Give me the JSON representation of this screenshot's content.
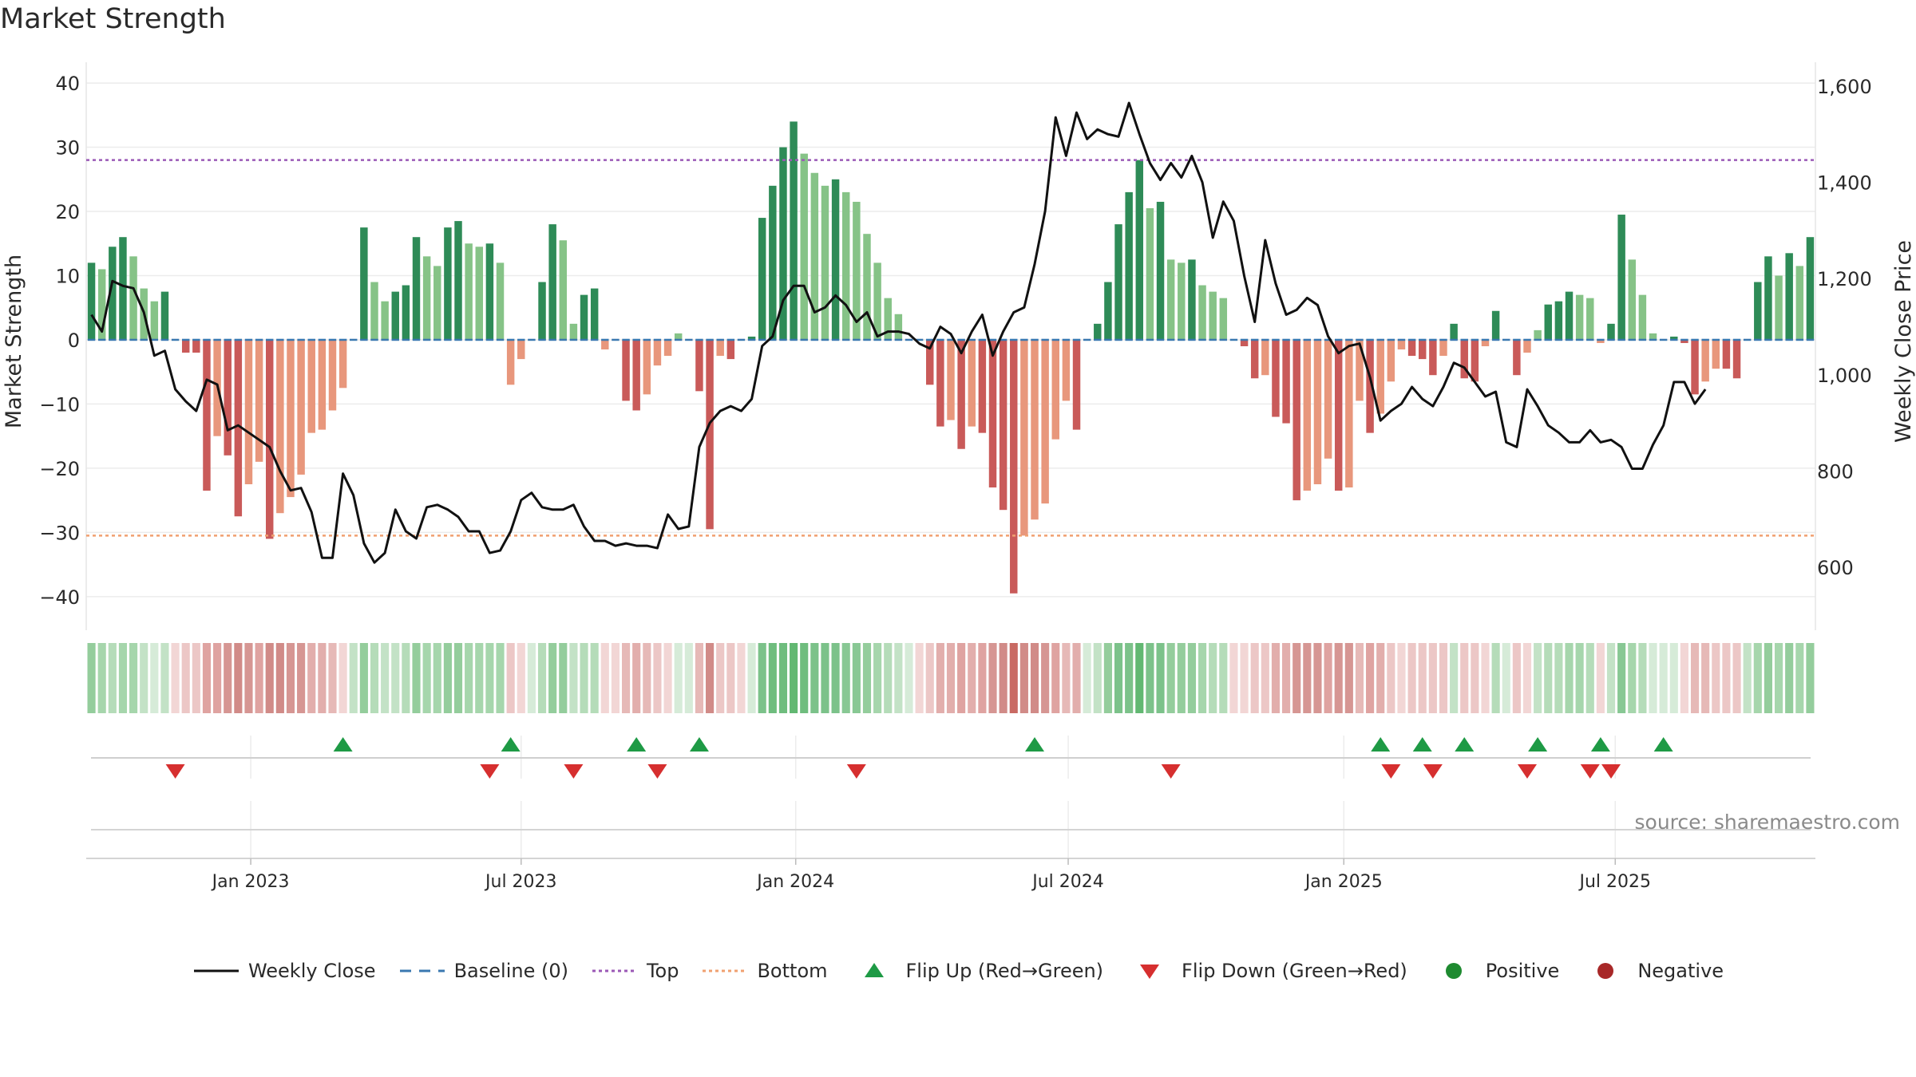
{
  "page": {
    "title": "Market Strength"
  },
  "chart_data": {
    "type": "bar",
    "title": "Market Strength",
    "ylabel": "Market Strength",
    "y2label": "Weekly Close Price",
    "ylim": [
      -44,
      42
    ],
    "y2lim": [
      486,
      1633
    ],
    "yticks": [
      -40,
      -30,
      -20,
      -10,
      0,
      10,
      20,
      30,
      40
    ],
    "y2ticks": [
      600,
      800,
      1000,
      1200,
      1400,
      1600
    ],
    "ytick_labels": [
      "−40",
      "−30",
      "−20",
      "−10",
      "0",
      "10",
      "20",
      "30",
      "40"
    ],
    "y2tick_labels": [
      "600",
      "800",
      "1,000",
      "1,200",
      "1,400",
      "1,600"
    ],
    "xticks": [
      {
        "label": "Jan 2023",
        "week": 15.2
      },
      {
        "label": "Jul 2023",
        "week": 41.0
      },
      {
        "label": "Jan 2024",
        "week": 67.2
      },
      {
        "label": "Jul 2024",
        "week": 93.2
      },
      {
        "label": "Jan 2025",
        "week": 119.5
      },
      {
        "label": "Jul 2025",
        "week": 145.4
      }
    ],
    "top_level": 28,
    "bottom_level": -30.5,
    "source": "source: sharemaestro.com",
    "strength": [
      12,
      11,
      14.5,
      16,
      13,
      8,
      6,
      7.5,
      0,
      -2,
      -2,
      -23.5,
      -15,
      -18,
      -27.5,
      -22.5,
      -19,
      -31,
      -27,
      -24.5,
      -21,
      -14.5,
      -14,
      -11,
      -7.5,
      0,
      17.5,
      9,
      6,
      7.5,
      8.5,
      16,
      13,
      11.5,
      17.5,
      18.5,
      15,
      14.5,
      15,
      12,
      -7,
      -3,
      0,
      9,
      18,
      15.5,
      2.5,
      7,
      8,
      -1.5,
      0,
      -9.5,
      -11,
      -8.5,
      -4,
      -2.5,
      1,
      0,
      -8,
      -29.5,
      -2.5,
      -3,
      0,
      0.5,
      19,
      24,
      30,
      34,
      29,
      26,
      24,
      25,
      23,
      21.5,
      16.5,
      12,
      6.5,
      4,
      0,
      0,
      -7,
      -13.5,
      -12.5,
      -17,
      -13.5,
      -14.5,
      -23,
      -26.5,
      -39.5,
      -30.5,
      -28,
      -25.5,
      -15.5,
      -9.5,
      -14,
      0,
      2.5,
      9,
      18,
      23,
      28,
      20.5,
      21.5,
      12.5,
      12,
      12.5,
      8.5,
      7.5,
      6.5,
      0,
      -1,
      -6,
      -5.5,
      -12,
      -13,
      -25,
      -23.5,
      -22.5,
      -18.5,
      -23.5,
      -23,
      -9.5,
      -14.5,
      -11.5,
      -6.5,
      -1.5,
      -2.5,
      -3,
      -5.5,
      -2.5,
      2.5,
      -6,
      -6.5,
      -1,
      4.5,
      0,
      -5.5,
      -2,
      1.5,
      5.5,
      6,
      7.5,
      7,
      6.5,
      -0.5,
      2.5,
      19.5,
      12.5,
      7,
      1,
      0,
      0.5,
      -0.5,
      -8.5,
      -6.5,
      -4.5,
      -4.5,
      -6,
      0,
      9,
      13,
      10,
      13.5,
      11.5,
      16
    ],
    "close": [
      1125,
      1090,
      1195,
      1185,
      1180,
      1130,
      1040,
      1050,
      970,
      945,
      925,
      990,
      980,
      885,
      895,
      880,
      865,
      850,
      800,
      760,
      765,
      715,
      620,
      620,
      795,
      750,
      650,
      610,
      630,
      720,
      675,
      660,
      725,
      730,
      720,
      705,
      675,
      675,
      630,
      635,
      675,
      740,
      755,
      725,
      720,
      720,
      730,
      685,
      655,
      655,
      645,
      650,
      645,
      645,
      640,
      710,
      680,
      685,
      850,
      900,
      925,
      935,
      925,
      950,
      1060,
      1080,
      1155,
      1185,
      1185,
      1130,
      1140,
      1165,
      1145,
      1110,
      1130,
      1080,
      1090,
      1090,
      1085,
      1065,
      1055,
      1100,
      1085,
      1045,
      1090,
      1125,
      1040,
      1090,
      1130,
      1140,
      1230,
      1340,
      1535,
      1455,
      1545,
      1490,
      1510,
      1500,
      1495,
      1565,
      1500,
      1440,
      1405,
      1440,
      1410,
      1455,
      1400,
      1285,
      1360,
      1320,
      1205,
      1110,
      1280,
      1190,
      1125,
      1135,
      1160,
      1145,
      1080,
      1045,
      1060,
      1065,
      995,
      905,
      925,
      940,
      975,
      950,
      935,
      975,
      1025,
      1015,
      985,
      955,
      965,
      860,
      850,
      970,
      935,
      895,
      880,
      860,
      860,
      885,
      860,
      865,
      850,
      805,
      805,
      855,
      895,
      985,
      985,
      940,
      970
    ]
  },
  "lower": {
    "heat_colors": [
      "#94cd9c",
      "#a6d6ac",
      "#b5dcb9",
      "#a6d6ac",
      "#a6d6ac",
      "#c3e2c6",
      "#d6ebd8",
      "#c3e2c6",
      "#f2d6d5",
      "#ecc7c6",
      "#ecc7c6",
      "#dfa3a1",
      "#dfa3a1",
      "#d69693",
      "#d18b88",
      "#d69693",
      "#dfa3a1",
      "#d18b88",
      "#d18b88",
      "#d69693",
      "#d69693",
      "#e2aeac",
      "#e2aeac",
      "#e6b9b7",
      "#f2d6d5",
      "#c3e2c6",
      "#94cd9c",
      "#b5dcb9",
      "#c3e2c6",
      "#c3e2c6",
      "#b5dcb9",
      "#94cd9c",
      "#a6d6ac",
      "#a6d6ac",
      "#94cd9c",
      "#94cd9c",
      "#a6d6ac",
      "#a6d6ac",
      "#a6d6ac",
      "#a6d6ac",
      "#ecc7c6",
      "#f2d6d5",
      "#d6ebd8",
      "#b5dcb9",
      "#94cd9c",
      "#94cd9c",
      "#c3e2c6",
      "#b5dcb9",
      "#b5dcb9",
      "#f2d6d5",
      "#f2d6d5",
      "#e6b9b7",
      "#e2aeac",
      "#e6b9b7",
      "#ecc7c6",
      "#f2d6d5",
      "#d6ebd8",
      "#d6ebd8",
      "#e6b9b7",
      "#d18b88",
      "#ecc7c6",
      "#ecc7c6",
      "#f2d6d5",
      "#d6ebd8",
      "#7cc28a",
      "#6fbd7e",
      "#6fbd7e",
      "#62b872",
      "#6fbd7e",
      "#7cc28a",
      "#7cc28a",
      "#7cc28a",
      "#88c894",
      "#88c894",
      "#94cd9c",
      "#a6d6ac",
      "#b5dcb9",
      "#c3e2c6",
      "#d6ebd8",
      "#f2d6d5",
      "#ecc7c6",
      "#e2aeac",
      "#e2aeac",
      "#dfa3a1",
      "#e2aeac",
      "#dfa3a1",
      "#d69693",
      "#d18b88",
      "#c96a63",
      "#d18b88",
      "#d18b88",
      "#d69693",
      "#dfa3a1",
      "#e6b9b7",
      "#e2aeac",
      "#d6ebd8",
      "#c3e2c6",
      "#94cd9c",
      "#7cc28a",
      "#7cc28a",
      "#62b872",
      "#7cc28a",
      "#7cc28a",
      "#94cd9c",
      "#94cd9c",
      "#94cd9c",
      "#a6d6ac",
      "#b5dcb9",
      "#b5dcb9",
      "#f2d6d5",
      "#f2d6d5",
      "#ecc7c6",
      "#ecc7c6",
      "#e2aeac",
      "#e2aeac",
      "#d69693",
      "#d69693",
      "#d69693",
      "#dfa3a1",
      "#d69693",
      "#d69693",
      "#e6b9b7",
      "#dfa3a1",
      "#e2aeac",
      "#ecc7c6",
      "#f2d6d5",
      "#ecc7c6",
      "#ecc7c6",
      "#ecc7c6",
      "#ecc7c6",
      "#c3e2c6",
      "#ecc7c6",
      "#ecc7c6",
      "#f2d6d5",
      "#b5dcb9",
      "#d6ebd8",
      "#ecc7c6",
      "#f2d6d5",
      "#c3e2c6",
      "#b5dcb9",
      "#b5dcb9",
      "#a6d6ac",
      "#a6d6ac",
      "#b5dcb9",
      "#f2d6d5",
      "#c3e2c6",
      "#88c894",
      "#a6d6ac",
      "#b5dcb9",
      "#d6ebd8",
      "#d6ebd8",
      "#d6ebd8",
      "#f2d6d5",
      "#e6b9b7",
      "#e6b9b7",
      "#ecc7c6",
      "#ecc7c6",
      "#ecc7c6",
      "#c3e2c6",
      "#a6d6ac",
      "#94cd9c",
      "#a6d6ac",
      "#94cd9c",
      "#a6d6ac",
      "#94cd9c"
    ],
    "flip_up_weeks": [
      24,
      40,
      52,
      58,
      90,
      123,
      127,
      131,
      138,
      144,
      150
    ],
    "flip_down_weeks": [
      8,
      38,
      46,
      54,
      73,
      103,
      124,
      128,
      137,
      143,
      145
    ]
  },
  "legend": [
    {
      "key": "close",
      "label": "Weekly Close",
      "kind": "line",
      "color": "#111111"
    },
    {
      "key": "baseline",
      "label": "Baseline (0)",
      "kind": "dash",
      "color": "#3a78b0"
    },
    {
      "key": "top",
      "label": "Top",
      "kind": "dot",
      "color": "#9b59b6"
    },
    {
      "key": "bottom",
      "label": "Bottom",
      "kind": "dot",
      "color": "#f0a070"
    },
    {
      "key": "flip-up",
      "label": "Flip Up (Red→Green)",
      "kind": "tri-up",
      "color": "#1e9a45"
    },
    {
      "key": "flip-down",
      "label": "Flip Down (Green→Red)",
      "kind": "tri-down",
      "color": "#d62f2f"
    },
    {
      "key": "positive",
      "label": "Positive",
      "kind": "dot-fill",
      "color": "#1e8a30"
    },
    {
      "key": "negative",
      "label": "Negative",
      "kind": "dot-fill",
      "color": "#a82828"
    }
  ],
  "colors": {
    "pos_strong": "#2e8b57",
    "pos_light": "#86c387",
    "neg_strong": "#c95a59",
    "neg_light": "#e8977c",
    "grid": "#ececec",
    "close_line": "#111111",
    "top_line": "#9b59b6",
    "bottom_line": "#f0a070",
    "baseline": "#3a78b0"
  }
}
